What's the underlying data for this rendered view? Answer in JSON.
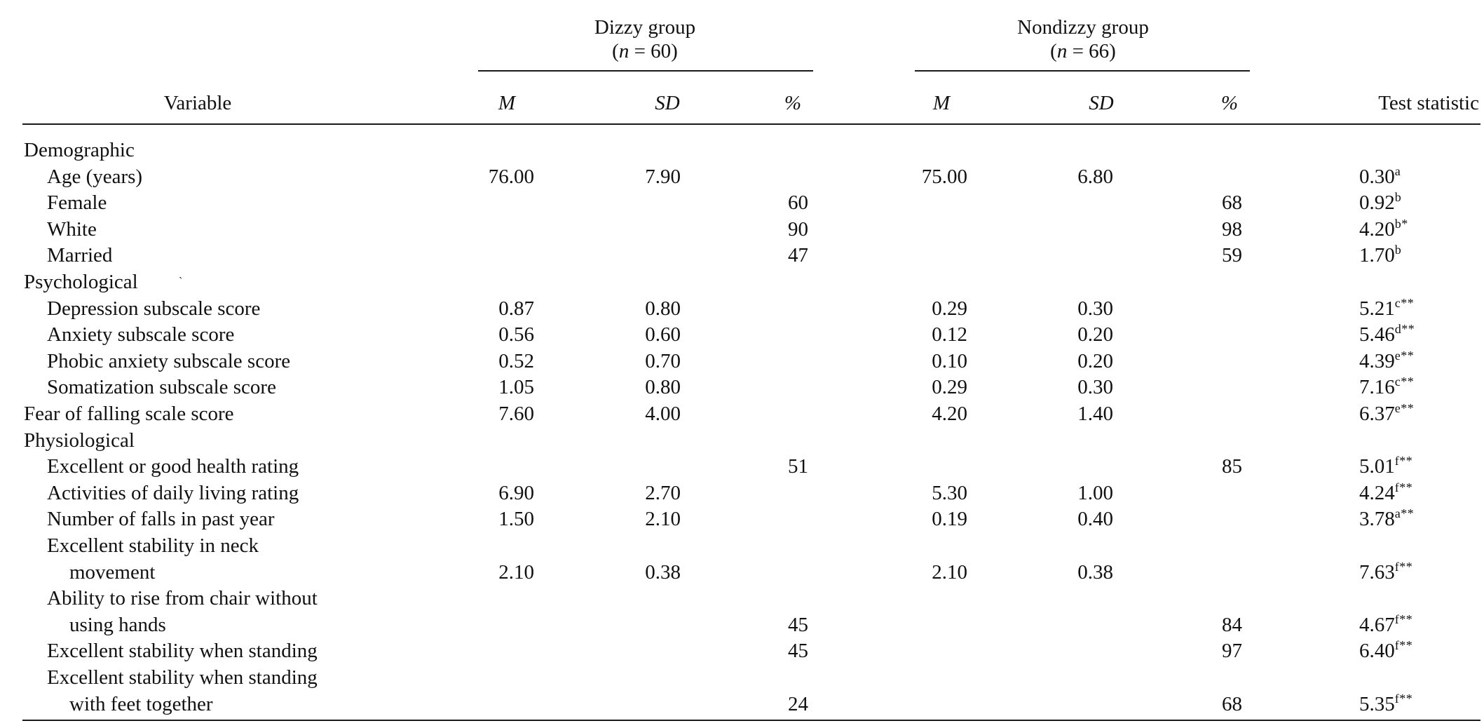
{
  "table": {
    "header": {
      "variable_label": "Variable",
      "groups": [
        {
          "name": "Dizzy group",
          "n_label": "(n = 60)",
          "n_prefix": "(",
          "n_italic": "n",
          "n_suffix": " = 60)"
        },
        {
          "name": "Nondizzy group",
          "n_label": "(n = 66)",
          "n_prefix": "(",
          "n_italic": "n",
          "n_suffix": " = 66)"
        }
      ],
      "columns": [
        "M",
        "SD",
        "%",
        "M",
        "SD",
        "%"
      ],
      "test_statistic_label": "Test statistic"
    },
    "rows": [
      {
        "label": "Demographic",
        "type": "section"
      },
      {
        "label": "Age (years)",
        "dizzy_m": "76.00",
        "dizzy_sd": "7.90",
        "dizzy_pct": "",
        "non_m": "75.00",
        "non_sd": "6.80",
        "non_pct": "",
        "stat": "0.30",
        "stat_sup": "a"
      },
      {
        "label": "Female",
        "dizzy_m": "",
        "dizzy_sd": "",
        "dizzy_pct": "60",
        "non_m": "",
        "non_sd": "",
        "non_pct": "68",
        "stat": "0.92",
        "stat_sup": "b"
      },
      {
        "label": "White",
        "dizzy_m": "",
        "dizzy_sd": "",
        "dizzy_pct": "90",
        "non_m": "",
        "non_sd": "",
        "non_pct": "98",
        "stat": "4.20",
        "stat_sup": "b*"
      },
      {
        "label": "Married",
        "dizzy_m": "",
        "dizzy_sd": "",
        "dizzy_pct": "47",
        "non_m": "",
        "non_sd": "",
        "non_pct": "59",
        "stat": "1.70",
        "stat_sup": "b"
      },
      {
        "label": "Psychological",
        "type": "section",
        "artifact": "`"
      },
      {
        "label": "Depression subscale score",
        "dizzy_m": "0.87",
        "dizzy_sd": "0.80",
        "dizzy_pct": "",
        "non_m": "0.29",
        "non_sd": "0.30",
        "non_pct": "",
        "stat": "5.21",
        "stat_sup": "c**"
      },
      {
        "label": "Anxiety subscale score",
        "dizzy_m": "0.56",
        "dizzy_sd": "0.60",
        "dizzy_pct": "",
        "non_m": "0.12",
        "non_sd": "0.20",
        "non_pct": "",
        "stat": "5.46",
        "stat_sup": "d**"
      },
      {
        "label": "Phobic anxiety subscale score",
        "dizzy_m": "0.52",
        "dizzy_sd": "0.70",
        "dizzy_pct": "",
        "non_m": "0.10",
        "non_sd": "0.20",
        "non_pct": "",
        "stat": "4.39",
        "stat_sup": "e**"
      },
      {
        "label": "Somatization subscale score",
        "dizzy_m": "1.05",
        "dizzy_sd": "0.80",
        "dizzy_pct": "",
        "non_m": "0.29",
        "non_sd": "0.30",
        "non_pct": "",
        "stat": "7.16",
        "stat_sup": "c**"
      },
      {
        "label": "Fear of falling scale score",
        "type": "top",
        "dizzy_m": "7.60",
        "dizzy_sd": "4.00",
        "dizzy_pct": "",
        "non_m": "4.20",
        "non_sd": "1.40",
        "non_pct": "",
        "stat": "6.37",
        "stat_sup": "e**"
      },
      {
        "label": "Physiological",
        "type": "section"
      },
      {
        "label": "Excellent or good health rating",
        "dizzy_m": "",
        "dizzy_sd": "",
        "dizzy_pct": "51",
        "non_m": "",
        "non_sd": "",
        "non_pct": "85",
        "stat": "5.01",
        "stat_sup": "f**"
      },
      {
        "label": "Activities of daily living rating",
        "dizzy_m": "6.90",
        "dizzy_sd": "2.70",
        "dizzy_pct": "",
        "non_m": "5.30",
        "non_sd": "1.00",
        "non_pct": "",
        "stat": "4.24",
        "stat_sup": "f**"
      },
      {
        "label": "Number of falls in past year",
        "dizzy_m": "1.50",
        "dizzy_sd": "2.10",
        "dizzy_pct": "",
        "non_m": "0.19",
        "non_sd": "0.40",
        "non_pct": "",
        "stat": "3.78",
        "stat_sup": "a**"
      },
      {
        "label": "Excellent stability in neck",
        "label_cont": "movement",
        "dizzy_m": "2.10",
        "dizzy_sd": "0.38",
        "dizzy_pct": "",
        "non_m": "2.10",
        "non_sd": "0.38",
        "non_pct": "",
        "stat": "7.63",
        "stat_sup": "f**"
      },
      {
        "label": "Ability to rise from chair without",
        "label_cont": "using hands",
        "dizzy_m": "",
        "dizzy_sd": "",
        "dizzy_pct": "45",
        "non_m": "",
        "non_sd": "",
        "non_pct": "84",
        "stat": "4.67",
        "stat_sup": "f**"
      },
      {
        "label": "Excellent stability when standing",
        "dizzy_m": "",
        "dizzy_sd": "",
        "dizzy_pct": "45",
        "non_m": "",
        "non_sd": "",
        "non_pct": "97",
        "stat": "6.40",
        "stat_sup": "f**"
      },
      {
        "label": "Excellent stability when standing",
        "label_cont": "with feet together",
        "dizzy_m": "",
        "dizzy_sd": "",
        "dizzy_pct": "24",
        "non_m": "",
        "non_sd": "",
        "non_pct": "68",
        "stat": "5.35",
        "stat_sup": "f**"
      }
    ]
  },
  "colors": {
    "text": "#111111",
    "rule": "#1a1a1a",
    "background": "#ffffff"
  }
}
